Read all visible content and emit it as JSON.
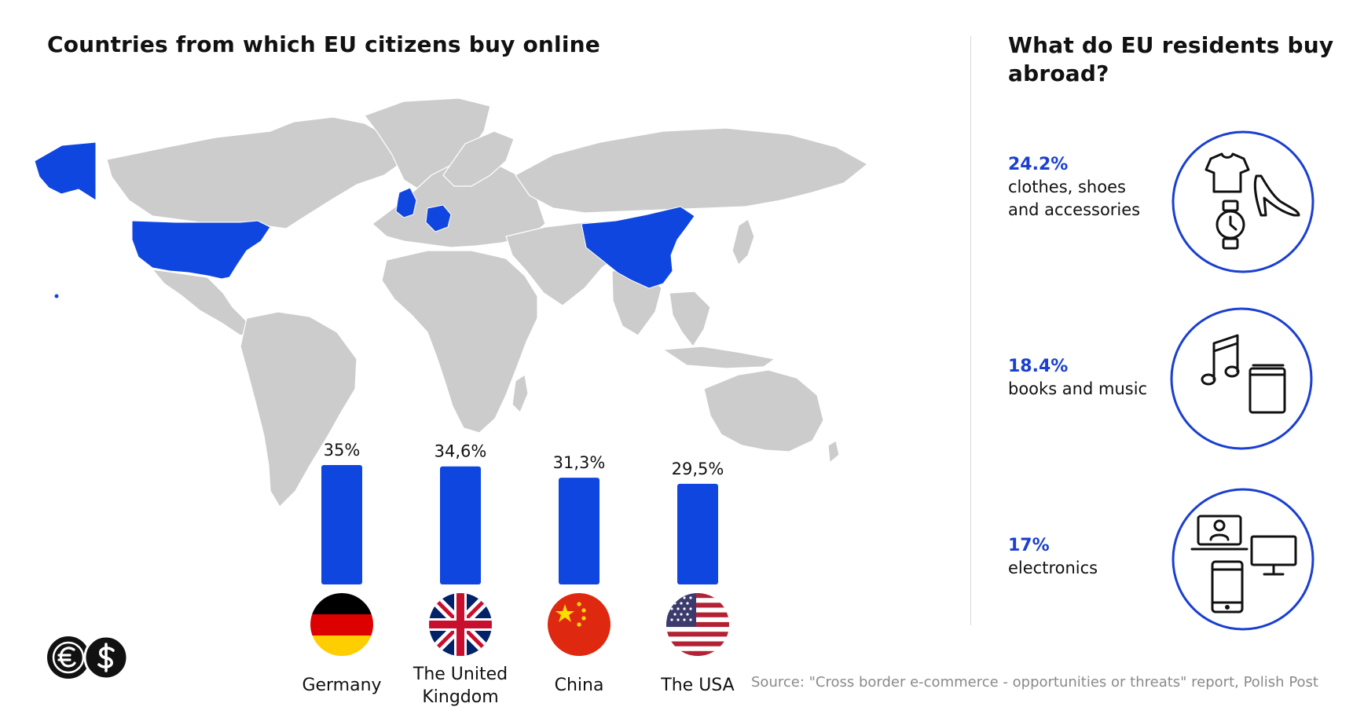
{
  "left_title": "Countries from which EU citizens buy online",
  "right_title": "What do EU residents buy abroad?",
  "chart_data": {
    "type": "bar",
    "title": "Countries from which EU citizens buy online",
    "categories": [
      "Germany",
      "The United Kingdom",
      "China",
      "The USA"
    ],
    "values": [
      35,
      34.6,
      31.3,
      29.5
    ],
    "value_labels": [
      "35%",
      "34,6%",
      "31,3%",
      "29,5%"
    ],
    "bar_color": "#0f46e0",
    "highlight_color": "#0f46e0",
    "map_color": "#cccccc"
  },
  "countries": [
    {
      "name": "Germany",
      "flag": "germany-flag"
    },
    {
      "name": "The United Kingdom",
      "flag": "uk-flag"
    },
    {
      "name": "China",
      "flag": "china-flag"
    },
    {
      "name": "The USA",
      "flag": "usa-flag"
    }
  ],
  "categories": [
    {
      "value": "24.2%",
      "label": "clothes, shoes\nand accessories",
      "icons": [
        "t-shirt-icon",
        "high-heel-icon",
        "wristwatch-icon"
      ]
    },
    {
      "value": "18.4%",
      "label": "books and music",
      "icons": [
        "music-note-icon",
        "book-icon"
      ]
    },
    {
      "value": "17%",
      "label": " electronics",
      "icons": [
        "laptop-icon",
        "monitor-icon",
        "smartphone-icon"
      ]
    }
  ],
  "source": "Source: \"Cross border e-commerce - opportunities or threats\" report, Polish Post",
  "colors": {
    "accent": "#1a3fd1",
    "circle": "#1a3fd1",
    "text": "#111111",
    "muted": "#8a8a8a"
  }
}
